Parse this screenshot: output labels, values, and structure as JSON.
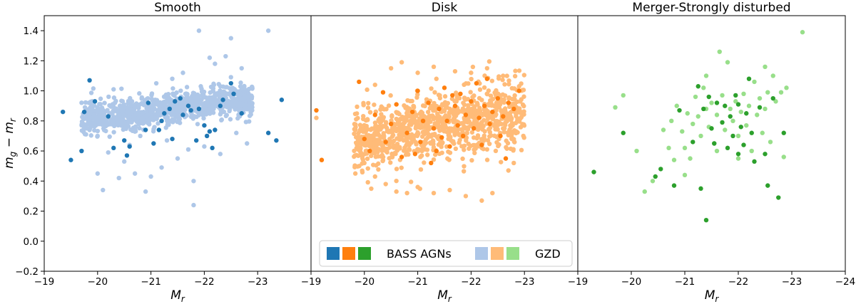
{
  "chart_data": [
    {
      "type": "scatter",
      "title": "Smooth",
      "xlabel": "M_r",
      "ylabel": "m_g − m_r",
      "xlim": [
        -19,
        -24
      ],
      "ylim": [
        -0.2,
        1.5
      ],
      "xticks": [
        "−19",
        "−20",
        "−21",
        "−22",
        "−23"
      ],
      "xtick_values": [
        -19,
        -20,
        -21,
        -22,
        -23
      ],
      "yticks": [
        "−0.2",
        "0.0",
        "0.2",
        "0.4",
        "0.6",
        "0.8",
        "1.0",
        "1.2",
        "1.4"
      ],
      "ytick_values": [
        -0.2,
        0.0,
        0.2,
        0.4,
        0.6,
        0.8,
        1.0,
        1.2,
        1.4
      ],
      "series": [
        {
          "name": "GZD",
          "color": "#aec7e8",
          "cloud": {
            "count": 950,
            "x_min": -19.7,
            "x_max": -22.9,
            "y_start": 0.81,
            "y_slope": 0.045,
            "spread": 0.055,
            "seed": 11
          },
          "points": [
            [
              -19.9,
              0.93
            ],
            [
              -20.2,
              0.59
            ],
            [
              -20.0,
              0.45
            ],
            [
              -20.1,
              0.34
            ],
            [
              -20.4,
              0.42
            ],
            [
              -20.5,
              0.53
            ],
            [
              -20.7,
              0.45
            ],
            [
              -20.9,
              0.33
            ],
            [
              -21.0,
              0.43
            ],
            [
              -21.2,
              0.49
            ],
            [
              -21.3,
              0.67
            ],
            [
              -21.5,
              0.55
            ],
            [
              -21.8,
              0.4
            ],
            [
              -21.8,
              0.24
            ],
            [
              -20.6,
              0.64
            ],
            [
              -20.8,
              0.7
            ],
            [
              -21.1,
              1.05
            ],
            [
              -21.4,
              1.08
            ],
            [
              -21.6,
              1.12
            ],
            [
              -21.9,
              1.4
            ],
            [
              -22.2,
              1.18
            ],
            [
              -22.4,
              1.23
            ],
            [
              -22.5,
              1.35
            ],
            [
              -22.1,
              1.22
            ],
            [
              -23.2,
              1.4
            ],
            [
              -22.7,
              1.15
            ],
            [
              -22.0,
              0.63
            ],
            [
              -22.3,
              0.58
            ],
            [
              -21.7,
              0.61
            ],
            [
              -20.3,
              1.01
            ],
            [
              -19.8,
              0.75
            ],
            [
              -20.0,
              0.7
            ],
            [
              -22.8,
              0.65
            ],
            [
              -22.6,
              0.72
            ]
          ]
        },
        {
          "name": "BASS AGNs",
          "color": "#1f77b4",
          "points": [
            [
              -19.35,
              0.86
            ],
            [
              -19.5,
              0.54
            ],
            [
              -19.7,
              0.6
            ],
            [
              -19.75,
              0.86
            ],
            [
              -19.85,
              1.07
            ],
            [
              -19.95,
              0.93
            ],
            [
              -20.2,
              0.83
            ],
            [
              -20.3,
              0.62
            ],
            [
              -20.5,
              0.67
            ],
            [
              -20.55,
              0.57
            ],
            [
              -20.6,
              0.63
            ],
            [
              -20.9,
              0.74
            ],
            [
              -20.95,
              0.92
            ],
            [
              -21.05,
              0.65
            ],
            [
              -21.15,
              0.74
            ],
            [
              -21.2,
              0.8
            ],
            [
              -21.25,
              0.85
            ],
            [
              -21.35,
              0.88
            ],
            [
              -21.4,
              0.68
            ],
            [
              -21.45,
              0.93
            ],
            [
              -21.55,
              0.95
            ],
            [
              -21.6,
              0.84
            ],
            [
              -21.7,
              0.9
            ],
            [
              -21.75,
              0.87
            ],
            [
              -21.85,
              0.67
            ],
            [
              -21.9,
              0.88
            ],
            [
              -22.0,
              0.77
            ],
            [
              -22.05,
              0.7
            ],
            [
              -22.1,
              0.73
            ],
            [
              -22.15,
              0.62
            ],
            [
              -22.2,
              0.74
            ],
            [
              -22.3,
              0.9
            ],
            [
              -22.35,
              0.94
            ],
            [
              -22.5,
              1.05
            ],
            [
              -22.55,
              0.98
            ],
            [
              -22.7,
              0.85
            ],
            [
              -23.2,
              0.72
            ],
            [
              -23.35,
              0.67
            ],
            [
              -23.45,
              0.94
            ]
          ]
        }
      ]
    },
    {
      "type": "scatter",
      "title": "Disk",
      "xlabel": "M_r",
      "ylabel": "",
      "xlim": [
        -19,
        -24
      ],
      "ylim": [
        -0.2,
        1.5
      ],
      "xticks": [
        "−19",
        "−20",
        "−21",
        "−22",
        "−23"
      ],
      "xtick_values": [
        -19,
        -20,
        -21,
        -22,
        -23
      ],
      "series": [
        {
          "name": "GZD",
          "color": "#ffbb78",
          "cloud": {
            "count": 1050,
            "x_min": -19.8,
            "x_max": -23.0,
            "y_start": 0.68,
            "y_slope": 0.055,
            "spread": 0.11,
            "seed": 23
          },
          "points": [
            [
              -19.1,
              0.82
            ],
            [
              -19.2,
              0.54
            ],
            [
              -20.0,
              0.52
            ],
            [
              -20.2,
              0.43
            ],
            [
              -20.4,
              0.38
            ],
            [
              -20.6,
              0.33
            ],
            [
              -20.8,
              0.32
            ],
            [
              -21.0,
              0.36
            ],
            [
              -21.3,
              0.32
            ],
            [
              -21.6,
              0.34
            ],
            [
              -21.9,
              0.3
            ],
            [
              -22.2,
              0.27
            ],
            [
              -22.4,
              0.32
            ],
            [
              -22.7,
              0.47
            ],
            [
              -22.8,
              0.52
            ],
            [
              -20.5,
              1.15
            ],
            [
              -20.7,
              1.19
            ],
            [
              -21.0,
              1.12
            ],
            [
              -21.3,
              1.16
            ],
            [
              -21.7,
              1.13
            ],
            [
              -22.0,
              1.12
            ],
            [
              -22.3,
              1.15
            ],
            [
              -22.6,
              1.1
            ],
            [
              -22.9,
              1.03
            ],
            [
              -20.2,
              1.04
            ]
          ]
        },
        {
          "name": "BASS AGNs",
          "color": "#ff7f0e",
          "points": [
            [
              -19.1,
              0.87
            ],
            [
              -19.2,
              0.54
            ],
            [
              -19.9,
              1.06
            ],
            [
              -20.0,
              0.68
            ],
            [
              -20.1,
              0.6
            ],
            [
              -20.2,
              0.84
            ],
            [
              -20.35,
              0.99
            ],
            [
              -20.5,
              0.78
            ],
            [
              -20.6,
              0.91
            ],
            [
              -20.7,
              0.56
            ],
            [
              -20.8,
              0.72
            ],
            [
              -20.9,
              0.86
            ],
            [
              -21.0,
              1.0
            ],
            [
              -21.05,
              0.66
            ],
            [
              -21.1,
              0.8
            ],
            [
              -21.2,
              0.92
            ],
            [
              -21.25,
              0.52
            ],
            [
              -21.3,
              0.75
            ],
            [
              -21.4,
              0.88
            ],
            [
              -21.45,
              0.69
            ],
            [
              -21.5,
              1.02
            ],
            [
              -21.55,
              0.8
            ],
            [
              -21.6,
              0.63
            ],
            [
              -21.7,
              0.9
            ],
            [
              -21.75,
              0.77
            ],
            [
              -21.8,
              0.98
            ],
            [
              -21.85,
              0.7
            ],
            [
              -21.9,
              0.84
            ],
            [
              -22.0,
              0.93
            ],
            [
              -22.05,
              0.75
            ],
            [
              -22.1,
              1.05
            ],
            [
              -22.15,
              0.82
            ],
            [
              -22.2,
              0.64
            ],
            [
              -22.25,
              0.9
            ],
            [
              -22.3,
              1.08
            ],
            [
              -22.35,
              0.78
            ],
            [
              -22.4,
              0.86
            ],
            [
              -22.5,
              0.95
            ],
            [
              -22.55,
              0.7
            ],
            [
              -22.6,
              0.83
            ],
            [
              -22.65,
              0.55
            ],
            [
              -22.7,
              0.92
            ],
            [
              -22.8,
              0.88
            ],
            [
              -22.9,
              1.0
            ],
            [
              -20.4,
              0.66
            ],
            [
              -21.35,
              0.6
            ],
            [
              -21.65,
              0.97
            ],
            [
              -20.95,
              0.58
            ]
          ]
        }
      ]
    },
    {
      "type": "scatter",
      "title": "Merger-Strongly disturbed",
      "xlabel": "M_r",
      "ylabel": "",
      "xlim": [
        -19,
        -24
      ],
      "ylim": [
        -0.2,
        1.5
      ],
      "xticks": [
        "−19",
        "−20",
        "−21",
        "−22",
        "−23",
        "−24"
      ],
      "xtick_values": [
        -19,
        -20,
        -21,
        -22,
        -23,
        -24
      ],
      "series": [
        {
          "name": "GZD",
          "color": "#98df8a",
          "points": [
            [
              -19.7,
              0.89
            ],
            [
              -19.85,
              0.97
            ],
            [
              -20.1,
              0.6
            ],
            [
              -20.25,
              0.33
            ],
            [
              -20.4,
              0.4
            ],
            [
              -20.6,
              0.74
            ],
            [
              -20.7,
              0.62
            ],
            [
              -20.75,
              0.8
            ],
            [
              -20.85,
              0.9
            ],
            [
              -20.95,
              0.73
            ],
            [
              -21.0,
              0.62
            ],
            [
              -21.05,
              0.85
            ],
            [
              -21.1,
              0.55
            ],
            [
              -21.15,
              0.78
            ],
            [
              -21.2,
              0.96
            ],
            [
              -21.25,
              0.83
            ],
            [
              -21.3,
              0.7
            ],
            [
              -21.35,
              1.02
            ],
            [
              -21.4,
              0.88
            ],
            [
              -21.45,
              0.76
            ],
            [
              -21.5,
              0.92
            ],
            [
              -21.55,
              0.65
            ],
            [
              -21.6,
              0.84
            ],
            [
              -21.65,
              1.26
            ],
            [
              -21.7,
              0.97
            ],
            [
              -21.75,
              0.74
            ],
            [
              -21.8,
              1.19
            ],
            [
              -21.85,
              0.88
            ],
            [
              -21.9,
              0.8
            ],
            [
              -21.95,
              0.93
            ],
            [
              -22.0,
              0.7
            ],
            [
              -22.05,
              0.86
            ],
            [
              -22.1,
              0.98
            ],
            [
              -22.15,
              0.77
            ],
            [
              -22.2,
              0.9
            ],
            [
              -22.25,
              0.6
            ],
            [
              -22.3,
              1.06
            ],
            [
              -22.35,
              0.84
            ],
            [
              -22.4,
              0.95
            ],
            [
              -22.45,
              0.72
            ],
            [
              -22.5,
              0.88
            ],
            [
              -22.55,
              0.99
            ],
            [
              -22.6,
              0.66
            ],
            [
              -22.65,
              1.1
            ],
            [
              -22.7,
              0.93
            ],
            [
              -22.8,
              0.99
            ],
            [
              -22.85,
              0.56
            ],
            [
              -22.9,
              1.02
            ],
            [
              -23.2,
              1.39
            ],
            [
              -21.0,
              0.44
            ],
            [
              -20.8,
              0.54
            ],
            [
              -21.6,
              0.6
            ],
            [
              -22.0,
              0.55
            ],
            [
              -21.4,
              1.1
            ],
            [
              -22.5,
              1.16
            ]
          ]
        },
        {
          "name": "BASS AGNs",
          "color": "#2ca02c",
          "points": [
            [
              -19.3,
              0.46
            ],
            [
              -19.85,
              0.72
            ],
            [
              -20.45,
              0.43
            ],
            [
              -20.55,
              0.48
            ],
            [
              -20.8,
              0.37
            ],
            [
              -20.9,
              0.87
            ],
            [
              -21.15,
              0.66
            ],
            [
              -21.25,
              1.03
            ],
            [
              -21.3,
              0.35
            ],
            [
              -21.35,
              0.88
            ],
            [
              -21.4,
              0.14
            ],
            [
              -21.45,
              0.96
            ],
            [
              -21.5,
              0.75
            ],
            [
              -21.55,
              0.65
            ],
            [
              -21.6,
              0.92
            ],
            [
              -21.7,
              0.79
            ],
            [
              -21.75,
              0.9
            ],
            [
              -21.8,
              0.62
            ],
            [
              -21.85,
              0.83
            ],
            [
              -21.9,
              0.7
            ],
            [
              -22.0,
              0.91
            ],
            [
              -22.05,
              0.76
            ],
            [
              -22.1,
              0.64
            ],
            [
              -22.15,
              0.85
            ],
            [
              -22.2,
              1.08
            ],
            [
              -22.25,
              0.72
            ],
            [
              -22.3,
              0.53
            ],
            [
              -22.4,
              0.89
            ],
            [
              -22.5,
              0.58
            ],
            [
              -22.55,
              0.37
            ],
            [
              -22.65,
              0.95
            ],
            [
              -22.75,
              0.29
            ],
            [
              -22.85,
              0.72
            ],
            [
              -22.0,
              0.58
            ],
            [
              -21.95,
              0.97
            ]
          ]
        }
      ]
    }
  ],
  "legend": {
    "placement": "bottom-center",
    "labels": [
      "BASS AGNs",
      "GZD"
    ],
    "bass_colors": [
      "#1f77b4",
      "#ff7f0e",
      "#2ca02c"
    ],
    "gzd_colors": [
      "#aec7e8",
      "#ffbb78",
      "#98df8a"
    ]
  }
}
